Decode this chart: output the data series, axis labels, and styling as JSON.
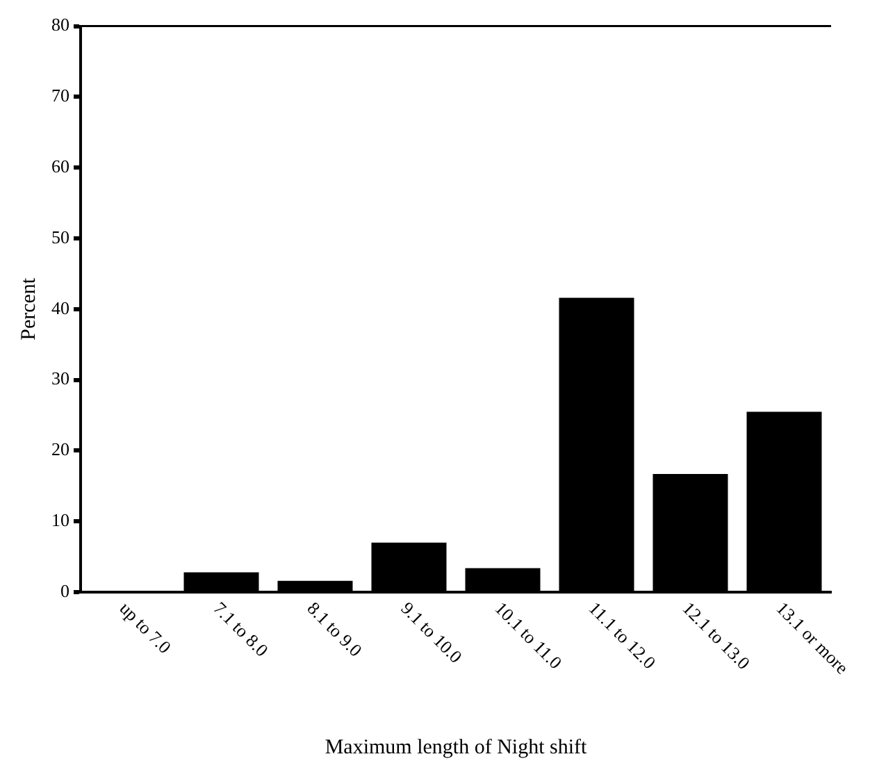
{
  "chart_data": {
    "type": "bar",
    "xlabel": "Maximum length of Night shift",
    "ylabel": "Percent",
    "categories": [
      "up to 7.0",
      "7.1 to 8.0",
      "8.1 to 9.0",
      "9.1 to 10.0",
      "10.1 to 11.0",
      "11.1 to 12.0",
      "12.1 to 13.0",
      "13.1 or more"
    ],
    "values": [
      0,
      2.8,
      1.6,
      7.0,
      3.4,
      41.6,
      16.7,
      25.5
    ],
    "color": "#000000",
    "ylim": [
      0,
      80
    ],
    "yticks": [
      0,
      10,
      20,
      30,
      40,
      50,
      60,
      70,
      80
    ],
    "grid": false,
    "legend": false
  }
}
